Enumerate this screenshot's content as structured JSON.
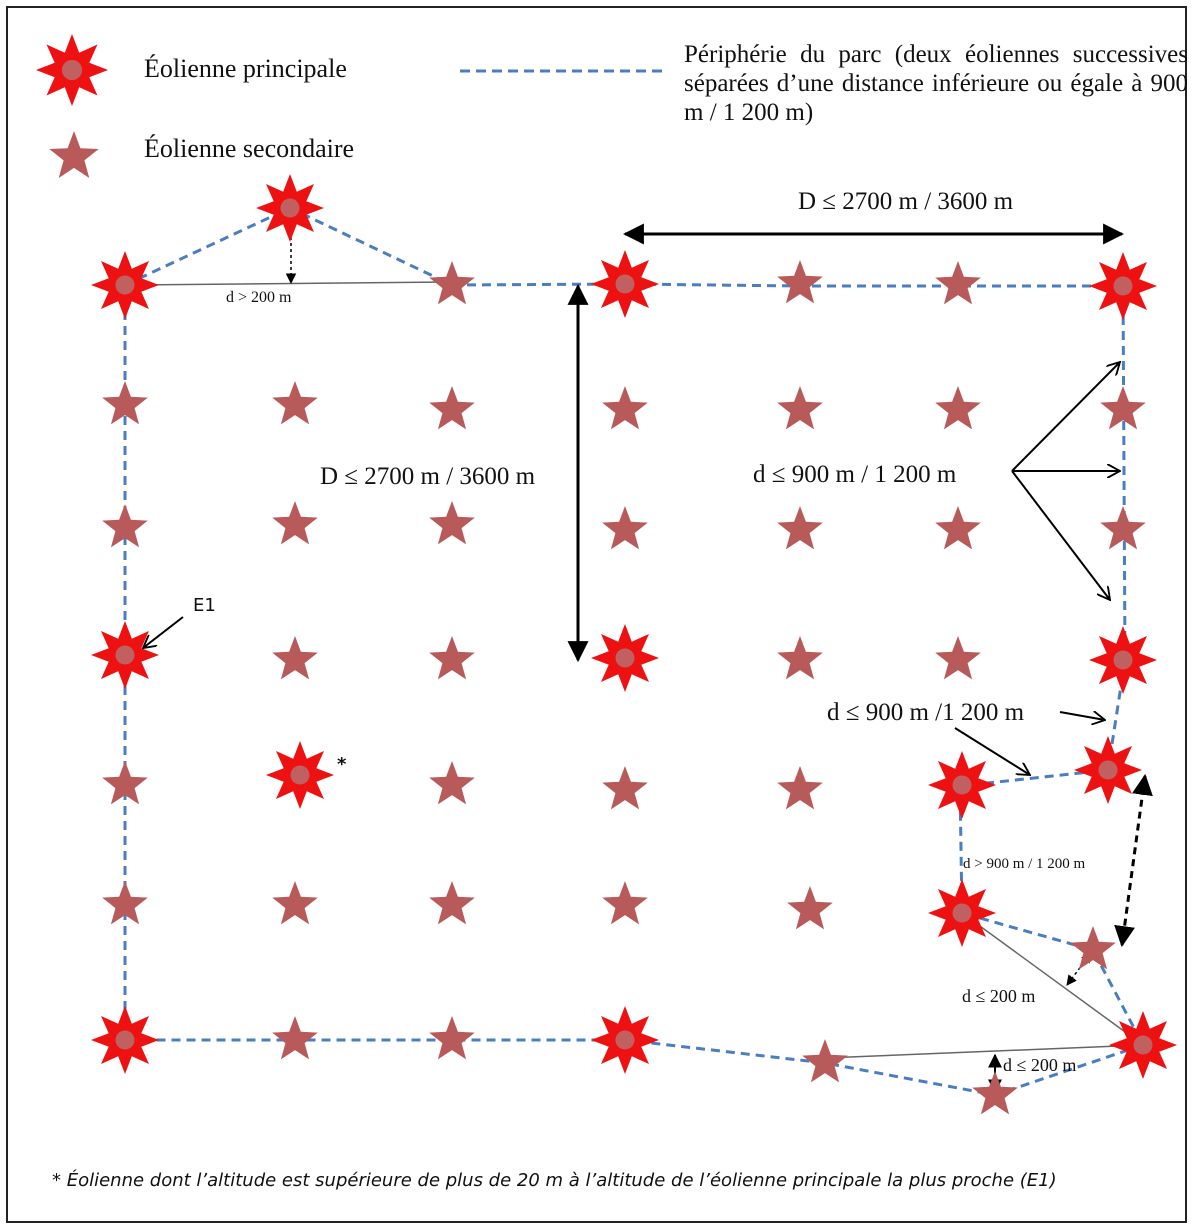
{
  "legend": {
    "main_turbine": "Éolienne principale",
    "secondary_turbine": "Éolienne secondaire",
    "perimeter": "Périphérie du parc (deux éoliennes successives séparées d’une distance inférieure ou égale à 900 m / 1 200 m)"
  },
  "labels": {
    "D_top": "D ≤ 2700 m / 3600 m",
    "D_middle": "D ≤ 2700 m / 3600 m",
    "d_900_right": "d ≤ 900 m / 1 200 m",
    "d_900_lower": "d ≤ 900 m /1 200 m",
    "d_gt_900": "d > 900 m / 1 200 m",
    "d_gt_200": "d > 200 m",
    "d_le_200_a": "d ≤ 200 m",
    "d_le_200_b": "d ≤ 200 m",
    "e1": "E1",
    "asterisk": "*"
  },
  "footnote": "* Éolienne dont l’altitude est supérieure de plus de 20 m à l’altitude de l’éolienne principale la plus proche (E1)",
  "colors": {
    "main_star": "#ee1111",
    "main_center": "#c06060",
    "secondary_star": "#b85a5a",
    "perimeter": "#4a7ec0",
    "arrow": "#000000",
    "thin_line": "#666666"
  }
}
